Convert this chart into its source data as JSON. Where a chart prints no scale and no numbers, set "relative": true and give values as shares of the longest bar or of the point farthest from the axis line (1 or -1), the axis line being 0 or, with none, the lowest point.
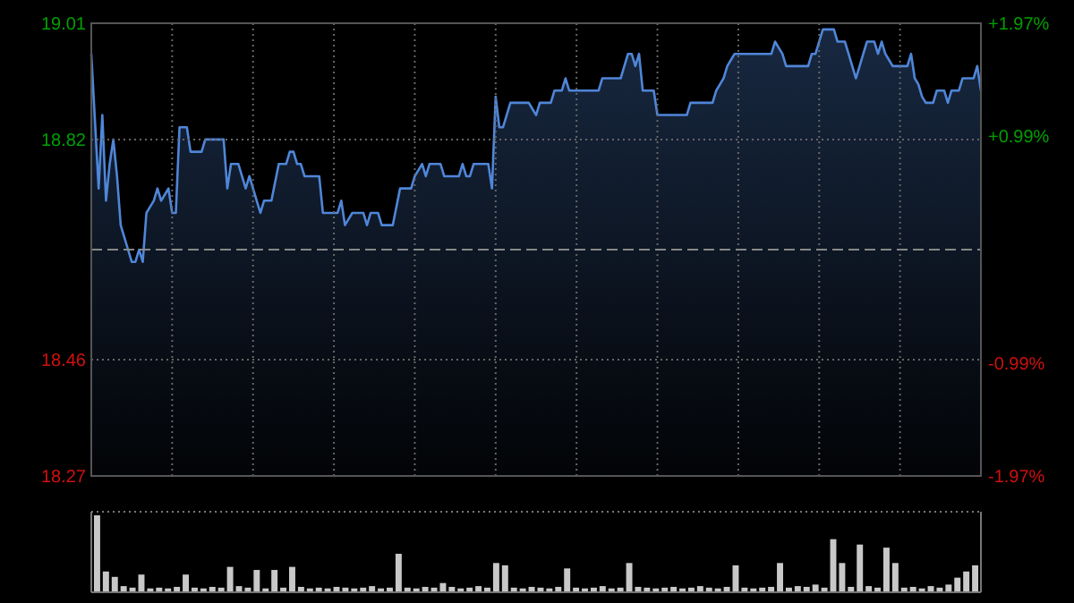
{
  "chart_data": [
    {
      "type": "area",
      "color": "#4f86d8",
      "categories": [
        null,
        null,
        null,
        null,
        null,
        null,
        null,
        null,
        null,
        null,
        null,
        null,
        null,
        null,
        null,
        null,
        null,
        null,
        null,
        null,
        null,
        null,
        null,
        null,
        null,
        null,
        null,
        null,
        null,
        null,
        null,
        null,
        null,
        null,
        null,
        null,
        null,
        null,
        null,
        null,
        null,
        null,
        null,
        null,
        null,
        null,
        null,
        null,
        null,
        null,
        null,
        null,
        null,
        null,
        null,
        null,
        null,
        null,
        null,
        null,
        null,
        null,
        null,
        null,
        null,
        null,
        null,
        null,
        null,
        null,
        null,
        null,
        null,
        null,
        null,
        null,
        null,
        null,
        null,
        null,
        null,
        null,
        null,
        null,
        null,
        null,
        null,
        null,
        null,
        null,
        null,
        null,
        null,
        null,
        null,
        null,
        null,
        null,
        null,
        null,
        null,
        null,
        null,
        null,
        null,
        null,
        null,
        null,
        null,
        null,
        null,
        null,
        null,
        null,
        null,
        null,
        null,
        null,
        null,
        null,
        null,
        null,
        null,
        null,
        null,
        null,
        null,
        null,
        null,
        null,
        null,
        null,
        null,
        null,
        null,
        null,
        null,
        null,
        null,
        null,
        null,
        null,
        null,
        null,
        null,
        null,
        null,
        null,
        null,
        null,
        null,
        null,
        null,
        null,
        null,
        null,
        null,
        null,
        null,
        null,
        null,
        null,
        null,
        null,
        null,
        null,
        null,
        null,
        null,
        null,
        null,
        null,
        null,
        null,
        null,
        null,
        null,
        null,
        null,
        null,
        null,
        null,
        null,
        null,
        null,
        null,
        null,
        null,
        null,
        null,
        null,
        null,
        null,
        null,
        null,
        null,
        null,
        null,
        null,
        null,
        null,
        null,
        null,
        null,
        null,
        null,
        null,
        null,
        null,
        null,
        null,
        null,
        null,
        null,
        null,
        null,
        null,
        null,
        null,
        null,
        null,
        null,
        null,
        null,
        null,
        null,
        null,
        null,
        null,
        null,
        null,
        null,
        null,
        null,
        null,
        null,
        null,
        null,
        null,
        null,
        null,
        null,
        null
      ],
      "values": [
        18.96,
        18.85,
        18.74,
        18.86,
        18.72,
        18.78,
        18.82,
        18.76,
        18.68,
        18.66,
        18.64,
        18.62,
        18.62,
        18.64,
        18.62,
        18.7,
        18.71,
        18.72,
        18.74,
        18.72,
        18.73,
        18.74,
        18.7,
        18.7,
        18.84,
        18.84,
        18.84,
        18.8,
        18.8,
        18.8,
        18.8,
        18.82,
        18.82,
        18.82,
        18.82,
        18.82,
        18.82,
        18.74,
        18.78,
        18.78,
        18.78,
        18.76,
        18.74,
        18.76,
        18.74,
        18.72,
        18.7,
        18.72,
        18.72,
        18.72,
        18.75,
        18.78,
        18.78,
        18.78,
        18.8,
        18.8,
        18.78,
        18.78,
        18.76,
        18.76,
        18.76,
        18.76,
        18.76,
        18.7,
        18.7,
        18.7,
        18.7,
        18.7,
        18.72,
        18.68,
        18.69,
        18.7,
        18.7,
        18.7,
        18.7,
        18.68,
        18.7,
        18.7,
        18.7,
        18.68,
        18.68,
        18.68,
        18.68,
        18.71,
        18.74,
        18.74,
        18.74,
        18.74,
        18.76,
        18.77,
        18.78,
        18.76,
        18.78,
        18.78,
        18.78,
        18.78,
        18.76,
        18.76,
        18.76,
        18.76,
        18.76,
        18.78,
        18.76,
        18.76,
        18.78,
        18.78,
        18.78,
        18.78,
        18.78,
        18.74,
        18.89,
        18.84,
        18.84,
        18.86,
        18.88,
        18.88,
        18.88,
        18.88,
        18.88,
        18.88,
        18.87,
        18.86,
        18.88,
        18.88,
        18.88,
        18.88,
        18.9,
        18.9,
        18.9,
        18.92,
        18.9,
        18.9,
        18.9,
        18.9,
        18.9,
        18.9,
        18.9,
        18.9,
        18.9,
        18.92,
        18.92,
        18.92,
        18.92,
        18.92,
        18.92,
        18.94,
        18.96,
        18.96,
        18.94,
        18.96,
        18.9,
        18.9,
        18.9,
        18.9,
        18.86,
        18.86,
        18.86,
        18.86,
        18.86,
        18.86,
        18.86,
        18.86,
        18.86,
        18.88,
        18.88,
        18.88,
        18.88,
        18.88,
        18.88,
        18.88,
        18.9,
        18.91,
        18.92,
        18.94,
        18.95,
        18.96,
        18.96,
        18.96,
        18.96,
        18.96,
        18.96,
        18.96,
        18.96,
        18.96,
        18.96,
        18.96,
        18.98,
        18.97,
        18.96,
        18.94,
        18.94,
        18.94,
        18.94,
        18.94,
        18.94,
        18.94,
        18.96,
        18.96,
        18.98,
        19.0,
        19.0,
        19.0,
        19.0,
        18.98,
        18.98,
        18.98,
        18.96,
        18.94,
        18.92,
        18.94,
        18.96,
        18.98,
        18.98,
        18.98,
        18.96,
        18.98,
        18.96,
        18.95,
        18.94,
        18.94,
        18.94,
        18.94,
        18.94,
        18.96,
        18.92,
        18.91,
        18.89,
        18.88,
        18.88,
        18.88,
        18.9,
        18.9,
        18.9,
        18.88,
        18.9,
        18.9,
        18.9,
        18.92,
        18.92,
        18.92,
        18.92,
        18.94,
        18.9
      ],
      "ylim": [
        18.27,
        19.01
      ],
      "yticks": [
        19.01,
        18.82,
        18.46,
        18.27
      ],
      "y2lim": [
        -1.97,
        1.97
      ],
      "y2ticks": [
        {
          "value": 1.97,
          "label": "+1.97%"
        },
        {
          "value": 0.99,
          "label": "+0.99%"
        },
        {
          "value": -0.99,
          "label": "-0.99%"
        },
        {
          "value": -1.97,
          "label": "-1.97%"
        }
      ],
      "ref_lines": [
        {
          "axis": "y",
          "value": 18.64,
          "line_style": "dashed"
        }
      ],
      "grid": true
    },
    {
      "type": "bar",
      "relative": true,
      "color": "#c8c8c8",
      "categories": [
        null,
        null,
        null,
        null,
        null,
        null,
        null,
        null,
        null,
        null,
        null,
        null,
        null,
        null,
        null,
        null,
        null,
        null,
        null,
        null,
        null,
        null,
        null,
        null,
        null,
        null,
        null,
        null,
        null,
        null,
        null,
        null,
        null,
        null,
        null,
        null,
        null,
        null,
        null,
        null,
        null,
        null,
        null,
        null,
        null,
        null,
        null,
        null,
        null,
        null,
        null,
        null,
        null,
        null,
        null,
        null,
        null,
        null,
        null,
        null,
        null,
        null,
        null,
        null,
        null,
        null,
        null,
        null,
        null,
        null,
        null,
        null,
        null,
        null,
        null,
        null,
        null,
        null,
        null,
        null,
        null,
        null,
        null,
        null,
        null,
        null,
        null,
        null,
        null,
        null,
        null,
        null,
        null,
        null,
        null,
        null,
        null,
        null,
        null,
        null
      ],
      "values": [
        1.0,
        0.27,
        0.2,
        0.08,
        0.06,
        0.23,
        0.05,
        0.06,
        0.05,
        0.07,
        0.23,
        0.06,
        0.05,
        0.07,
        0.06,
        0.33,
        0.08,
        0.06,
        0.29,
        0.05,
        0.29,
        0.06,
        0.33,
        0.07,
        0.05,
        0.06,
        0.05,
        0.07,
        0.06,
        0.05,
        0.06,
        0.08,
        0.05,
        0.06,
        0.5,
        0.06,
        0.05,
        0.07,
        0.06,
        0.12,
        0.07,
        0.05,
        0.06,
        0.08,
        0.06,
        0.38,
        0.35,
        0.06,
        0.05,
        0.07,
        0.06,
        0.05,
        0.07,
        0.31,
        0.06,
        0.05,
        0.06,
        0.08,
        0.05,
        0.06,
        0.38,
        0.07,
        0.06,
        0.05,
        0.06,
        0.07,
        0.05,
        0.06,
        0.08,
        0.06,
        0.05,
        0.07,
        0.35,
        0.06,
        0.05,
        0.06,
        0.07,
        0.38,
        0.06,
        0.08,
        0.07,
        0.1,
        0.06,
        0.69,
        0.38,
        0.07,
        0.62,
        0.08,
        0.06,
        0.58,
        0.38,
        0.06,
        0.07,
        0.05,
        0.08,
        0.06,
        0.1,
        0.19,
        0.27,
        0.35
      ]
    }
  ]
}
